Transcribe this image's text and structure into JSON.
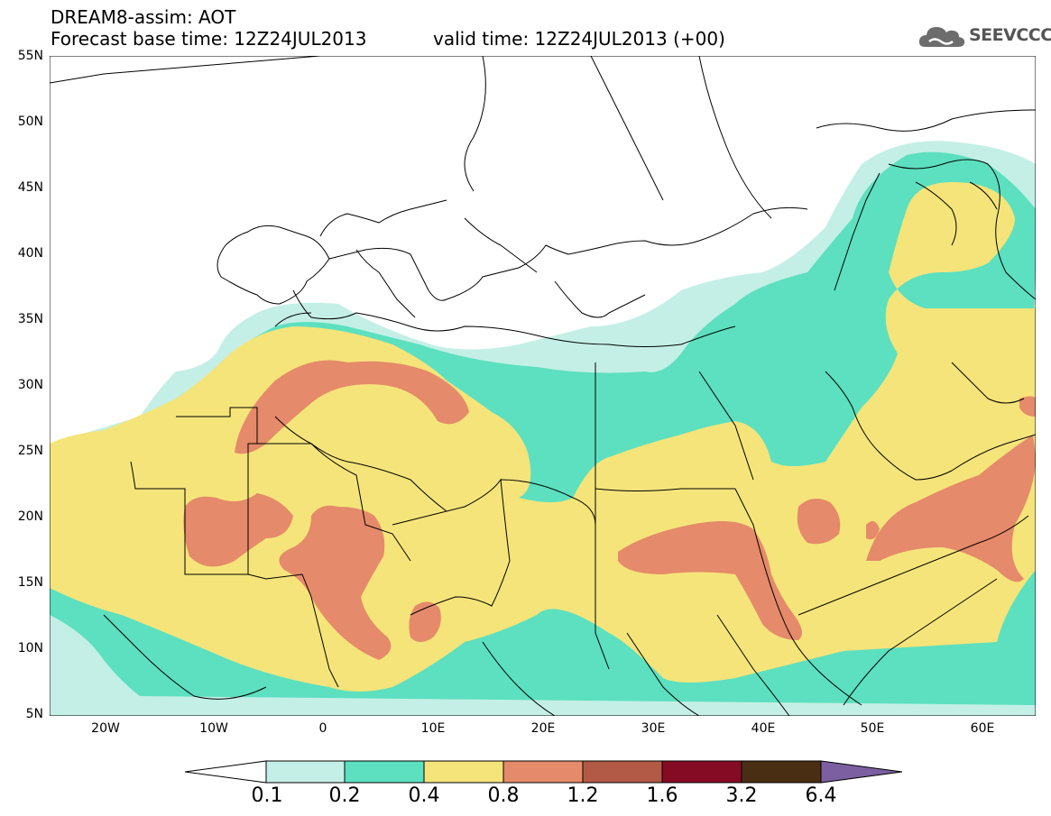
{
  "header": {
    "line1": "DREAM8-assim: AOT",
    "line2": "Forecast base time: 12Z24JUL2013",
    "line3": "valid time: 12Z24JUL2013 (+00)"
  },
  "logo": {
    "text": "SEEVCCC",
    "icon": "cloud-icon"
  },
  "axes": {
    "lat_labels": [
      "55N",
      "50N",
      "45N",
      "40N",
      "35N",
      "30N",
      "25N",
      "20N",
      "15N",
      "10N",
      "5N"
    ],
    "lon_labels": [
      "20W",
      "10W",
      "0",
      "10E",
      "20E",
      "30E",
      "40E",
      "50E",
      "60E"
    ]
  },
  "colorbar": {
    "labels": [
      "0.1",
      "0.2",
      "0.4",
      "0.8",
      "1.2",
      "1.6",
      "3.2",
      "6.4"
    ],
    "colors": [
      "#ffffff",
      "#c4efe6",
      "#5ce0bf",
      "#f5e47a",
      "#e58a6a",
      "#b25a45",
      "#850b25",
      "#4a2e14",
      "#7c5fa0"
    ]
  },
  "colors": {
    "aot_0_1": "#c4efe6",
    "aot_0_2": "#5ce0bf",
    "aot_0_4": "#f5e47a",
    "aot_0_8": "#e58a6a",
    "border": "#000000"
  }
}
